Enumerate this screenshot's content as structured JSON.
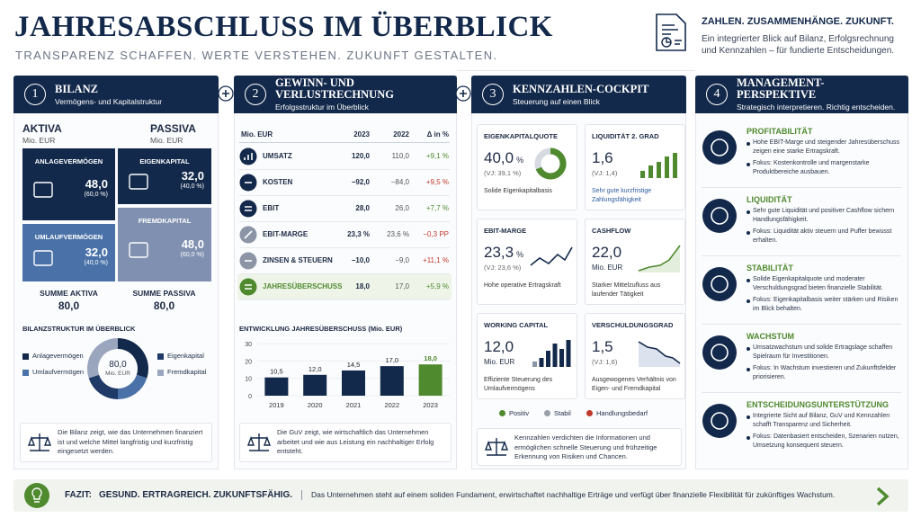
{
  "header": {
    "title": "JAHRESABSCHLUSS IM ÜBERBLICK",
    "subtitle": "TRANSPARENZ SCHAFFEN. WERTE VERSTEHEN. ZUKUNFT GESTALTEN.",
    "tagline": "ZAHLEN. ZUSAMMENHÄNGE. ZUKUNFT.",
    "description": "Ein integrierter Blick auf Bilanz, Erfolgsrechnung und Kennzahlen – für fundierte Entscheidungen."
  },
  "panels": [
    {
      "number": "1",
      "title": "BILANZ",
      "subtitle": "Vermögens- und Kapitalstruktur"
    },
    {
      "number": "2",
      "title": "GEWINN- UND VERLUSTRECHNUNG",
      "subtitle": "Erfolgsstruktur im Überblick"
    },
    {
      "number": "3",
      "title": "KENNZAHLEN-COCKPIT",
      "subtitle": "Steuerung auf einen Blick"
    },
    {
      "number": "4",
      "title": "MANAGEMENT-PERSPEKTIVE",
      "subtitle": "Strategisch interpretieren. Richtig entscheiden."
    }
  ],
  "bilanz": {
    "aktiva": {
      "label": "AKTIVA",
      "unit": "Mio. EUR"
    },
    "passiva": {
      "label": "PASSIVA",
      "unit": "Mio. EUR"
    },
    "blocks": [
      {
        "label": "ANLAGEVERMÖGEN",
        "value": "48,0",
        "share": "(60,0 %)"
      },
      {
        "label": "UMLAUFVERMÖGEN",
        "value": "32,0",
        "share": "(40,0 %)"
      },
      {
        "label": "EIGENKAPITAL",
        "value": "32,0",
        "share": "(40,0 %)"
      },
      {
        "label": "FREMDKAPITAL",
        "value": "48,0",
        "share": "(60,0 %)"
      }
    ],
    "sum_aktiva": {
      "label": "SUMME AKTIVA",
      "value": "80,0"
    },
    "sum_passiva": {
      "label": "SUMME PASSIVA",
      "value": "80,0"
    },
    "structure": {
      "type": "pie",
      "title": "BILANZSTRUKTUR IM ÜBERBLICK",
      "center_value": "80,0",
      "center_unit": "Mio. EUR",
      "categories": [
        "Anlagevermögen",
        "Umlaufvermögen",
        "Eigenkapital",
        "Fremdkapital"
      ],
      "values": [
        60,
        40,
        40,
        60
      ],
      "colors": [
        "#13294b",
        "#4a72a8",
        "#1f3a66",
        "#9aa6bd"
      ]
    },
    "note": "Die Bilanz zeigt, wie das Unternehmen finanziert ist und welche Mittel langfristig und kurzfristig eingesetzt werden."
  },
  "guv": {
    "header": [
      "Mio. EUR",
      "2023",
      "2022",
      "Δ in %"
    ],
    "rows": [
      [
        "UMSATZ",
        "120,0",
        "110,0",
        "+9,1 %"
      ],
      [
        "KOSTEN",
        "−92,0",
        "−84,0",
        "+9,5 %"
      ],
      [
        "EBIT",
        "28,0",
        "26,0",
        "+7,7 %"
      ],
      [
        "EBIT-MARGE",
        "23,3 %",
        "23,6 %",
        "−0,3 PP"
      ],
      [
        "ZINSEN & STEUERN",
        "−10,0",
        "−9,0",
        "+11,1 %"
      ],
      [
        "JAHRESÜBERSCHUSS",
        "18,0",
        "17,0",
        "+5,9 %"
      ]
    ],
    "chart": {
      "type": "bar",
      "title": "ENTWICKLUNG JAHRESÜBERSCHUSS (Mio. EUR)",
      "categories": [
        "2019",
        "2020",
        "2021",
        "2022",
        "2023"
      ],
      "values": [
        10.5,
        12.0,
        14.5,
        17.0,
        18.0
      ],
      "value_labels": [
        "10,5",
        "12,0",
        "14,5",
        "17,0",
        "18,0"
      ],
      "colors": [
        "#13294b",
        "#13294b",
        "#13294b",
        "#13294b",
        "#4f8a2f"
      ],
      "ylim": [
        0,
        30
      ],
      "yticks": [
        0,
        10,
        20,
        30
      ]
    },
    "note": "Die GuV zeigt, wie wirtschaftlich das Unternehmen arbeitet und wie aus Leistung ein nachhaltiger Erfolg entsteht."
  },
  "kpis": {
    "cards": [
      {
        "title": "EIGENKAPITALQUOTE",
        "value": "40,0",
        "unit": "%",
        "prior": "(VJ: 39,1 %)",
        "note": "Solide Eigenkapitalbasis"
      },
      {
        "title": "LIQUIDITÄT 2. GRAD",
        "value": "1,6",
        "prior": "(VJ: 1,4)",
        "note": "Sehr gute kurzfristige Zahlungsfähigkeit"
      },
      {
        "title": "EBIT-MARGE",
        "value": "23,3",
        "unit": "%",
        "prior": "(VJ: 23,6 %)",
        "note": "Hohe operative Ertragskraft"
      },
      {
        "title": "CASHFLOW",
        "value": "22,0",
        "unit": "Mio. EUR",
        "note": "Starker Mittelzufluss aus laufender Tätigkeit"
      },
      {
        "title": "WORKING CAPITAL",
        "value": "12,0",
        "unit": "Mio. EUR",
        "note": "Effiziente Steuerung des Umlaufvermögens"
      },
      {
        "title": "VERSCHULDUNGSGRAD",
        "value": "1,5",
        "prior": "(VJ: 1,6)",
        "note": "Ausgewogenes Verhältnis von Eigen- und Fremdkapital"
      }
    ],
    "legend": [
      {
        "name": "Positiv",
        "color": "#4f8a2f"
      },
      {
        "name": "Stabil",
        "color": "#9aa0a8"
      },
      {
        "name": "Handlungsbedarf",
        "color": "#c0392b"
      }
    ],
    "note": "Kennzahlen verdichten die Informationen und ermöglichen schnelle Steuerung und frühzeitige Erkennung von Risiken und Chancen."
  },
  "management": [
    {
      "title": "PROFITABILITÄT",
      "points": [
        "Hohe EBIT-Marge und steigender Jahresüberschuss zeigen eine starke Ertragskraft.",
        "Fokus: Kostenkontrolle und margenstarke Produktbereiche ausbauen."
      ]
    },
    {
      "title": "LIQUIDITÄT",
      "points": [
        "Sehr gute Liquidität und positiver Cashflow sichern Handlungsfähigkeit.",
        "Fokus: Liquidität aktiv steuern und Puffer bewusst erhalten."
      ]
    },
    {
      "title": "STABILITÄT",
      "points": [
        "Solide Eigenkapitalquote und moderater Verschuldungsgrad bieten finanzielle Stabilität.",
        "Fokus: Eigenkapitalbasis weiter stärken und Risiken im Blick behalten."
      ]
    },
    {
      "title": "WACHSTUM",
      "points": [
        "Umsatzwachstum und solide Ertragslage schaffen Spielraum für Investitionen.",
        "Fokus: In Wachstum investieren und Zukunftsfelder priorisieren."
      ]
    },
    {
      "title": "ENTSCHEIDUNGSUNTERSTÜTZUNG",
      "points": [
        "Integrierte Sicht auf Bilanz, GuV und Kennzahlen schafft Transparenz und Sicherheit.",
        "Fokus: Datenbasiert entscheiden, Szenarien nutzen, Umsetzung konsequent steuern."
      ]
    }
  ],
  "fazit": {
    "label": "FAZIT:",
    "headline": "GESUND. ERTRAGREICH. ZUKUNFTSFÄHIG.",
    "text": "Das Unternehmen steht auf einem soliden Fundament, erwirtschaftet nachhaltige Erträge und verfügt über finanzielle Flexibilität für zukünftiges Wachstum."
  }
}
